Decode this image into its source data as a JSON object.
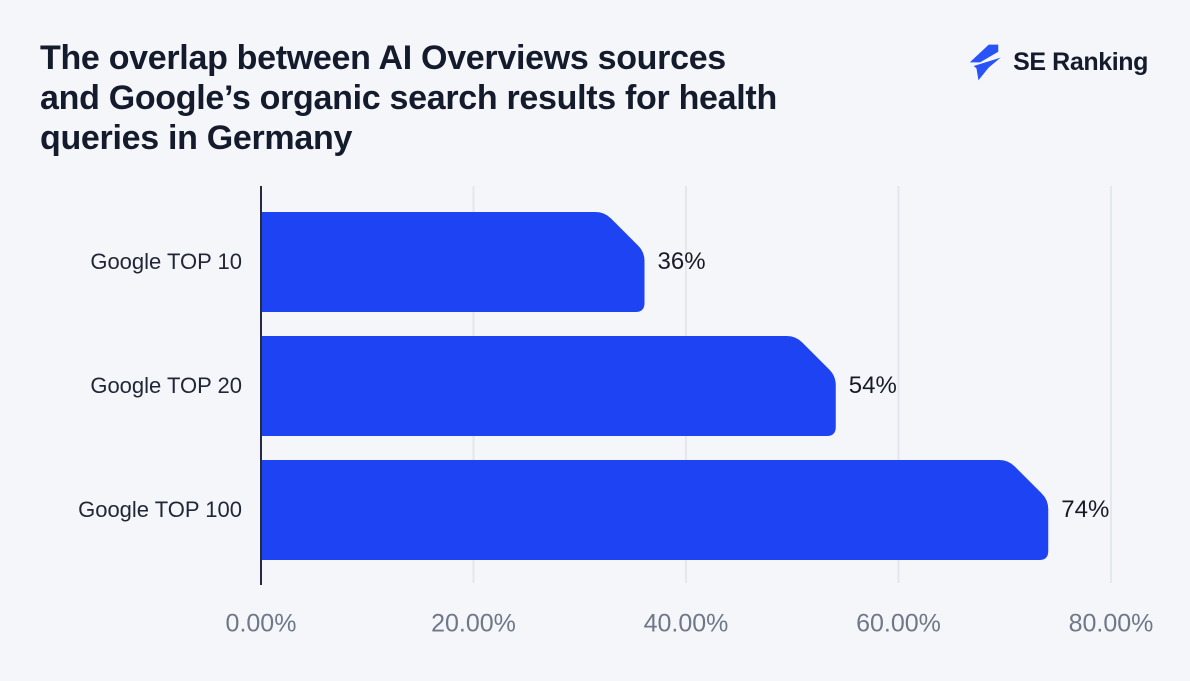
{
  "header": {
    "title": "The overlap between AI Overviews sources and Google’s organic search results for health queries in Germany",
    "title_lines": [
      "The overlap between AI Overviews sources",
      "and Google’s organic search results for health",
      "queries in Germany"
    ]
  },
  "brand": {
    "name": "SE Ranking"
  },
  "colors": {
    "background": "#f5f6f9",
    "bar": "#1d43f2",
    "logo_blue": "#2853f6",
    "title_text": "#141b2c",
    "category_label": "#1f2636",
    "value_label": "#161b27",
    "tick_label": "#6f7888",
    "axis_line": "#232c3e",
    "gridline": "#e3e7ee"
  },
  "chart_data": {
    "type": "bar",
    "orientation": "horizontal",
    "title": "The overlap between AI Overviews sources and Google’s organic search results for health queries in Germany",
    "categories": [
      "Google TOP 10",
      "Google TOP 20",
      "Google TOP 100"
    ],
    "values": [
      36,
      54,
      74
    ],
    "value_labels": [
      "36%",
      "54%",
      "74%"
    ],
    "x_ticks": [
      {
        "value": 0,
        "label": "0.00%"
      },
      {
        "value": 20,
        "label": "20.00%"
      },
      {
        "value": 40,
        "label": "40.00%"
      },
      {
        "value": 60,
        "label": "60.00%"
      },
      {
        "value": 80,
        "label": "80.00%"
      }
    ],
    "xlim": [
      0,
      80
    ],
    "grid": "vertical",
    "legend": "none"
  }
}
